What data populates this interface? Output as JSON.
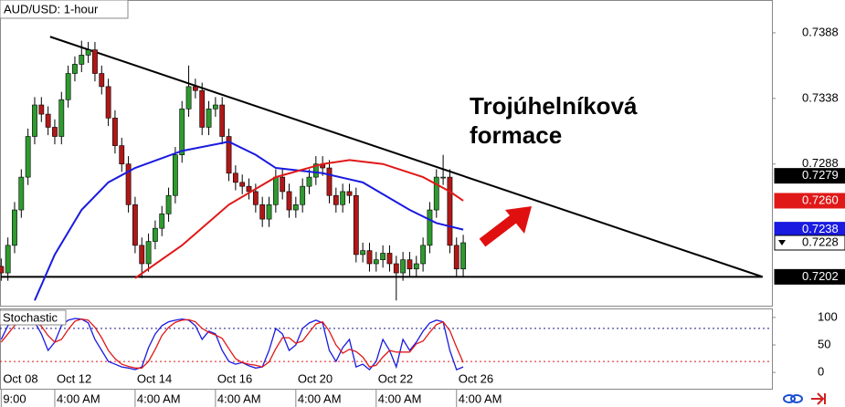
{
  "chart_data": [
    {
      "type": "candlestick",
      "title": "AUD/USD: 1-hour",
      "annotation": [
        "Trojúhelníková",
        "formace"
      ],
      "open": [
        0.721,
        0.7205,
        0.7226,
        0.7253,
        0.7278,
        0.7309,
        0.7333,
        0.7326,
        0.7316,
        0.7309,
        0.7337,
        0.7357,
        0.7364,
        0.7371,
        0.7375,
        0.7357,
        0.7347,
        0.7323,
        0.7302,
        0.7288,
        0.7257,
        0.7226,
        0.7212,
        0.7229,
        0.7239,
        0.725,
        0.7264,
        0.7295,
        0.733,
        0.7347,
        0.7344,
        0.7316,
        0.733,
        0.7333,
        0.7309,
        0.7281,
        0.7274,
        0.7271,
        0.7267,
        0.7257,
        0.7246,
        0.7257,
        0.7278,
        0.7267,
        0.7253,
        0.7257,
        0.7271,
        0.7278,
        0.7288,
        0.7285,
        0.7264,
        0.7257,
        0.7267,
        0.7264,
        0.7219,
        0.7222,
        0.7212,
        0.7215,
        0.722,
        0.7212,
        0.7205,
        0.7215,
        0.7208,
        0.7212,
        0.7226,
        0.7253,
        0.7278,
        0.7278,
        0.7226,
        0.7208
      ],
      "high": [
        0.7216,
        0.7232,
        0.7259,
        0.7284,
        0.7315,
        0.7339,
        0.7339,
        0.7332,
        0.7322,
        0.7343,
        0.7363,
        0.737,
        0.7382,
        0.7381,
        0.7381,
        0.7363,
        0.7353,
        0.7329,
        0.7308,
        0.7294,
        0.7263,
        0.7232,
        0.7235,
        0.7245,
        0.7256,
        0.727,
        0.7301,
        0.7336,
        0.7363,
        0.7353,
        0.735,
        0.7336,
        0.7339,
        0.7339,
        0.7315,
        0.7287,
        0.728,
        0.7277,
        0.7273,
        0.7263,
        0.7263,
        0.7284,
        0.7284,
        0.7273,
        0.7263,
        0.7277,
        0.7284,
        0.7294,
        0.7294,
        0.7291,
        0.727,
        0.7273,
        0.7273,
        0.727,
        0.7228,
        0.7228,
        0.7221,
        0.7226,
        0.7226,
        0.7218,
        0.7221,
        0.7221,
        0.7218,
        0.7232,
        0.7259,
        0.7284,
        0.7295,
        0.7284,
        0.7232,
        0.7234
      ],
      "low": [
        0.7199,
        0.7199,
        0.722,
        0.7247,
        0.7272,
        0.7303,
        0.732,
        0.731,
        0.7303,
        0.7303,
        0.7331,
        0.7351,
        0.7358,
        0.7365,
        0.7351,
        0.7341,
        0.7317,
        0.7296,
        0.7282,
        0.7251,
        0.722,
        0.7201,
        0.7206,
        0.7223,
        0.7233,
        0.7244,
        0.7258,
        0.7289,
        0.7324,
        0.7338,
        0.731,
        0.731,
        0.7324,
        0.7303,
        0.7275,
        0.7268,
        0.7265,
        0.7261,
        0.7251,
        0.724,
        0.724,
        0.7251,
        0.7261,
        0.7247,
        0.7247,
        0.7251,
        0.7265,
        0.7272,
        0.7279,
        0.7258,
        0.7251,
        0.7251,
        0.7258,
        0.7213,
        0.7213,
        0.7206,
        0.7206,
        0.7209,
        0.7206,
        0.7184,
        0.7199,
        0.7202,
        0.7202,
        0.7206,
        0.722,
        0.7247,
        0.7272,
        0.722,
        0.7202,
        0.7202
      ],
      "close": [
        0.7205,
        0.7226,
        0.7253,
        0.7278,
        0.7309,
        0.7333,
        0.7326,
        0.7316,
        0.7309,
        0.7337,
        0.7357,
        0.7364,
        0.7371,
        0.7375,
        0.7357,
        0.7347,
        0.7323,
        0.7302,
        0.7288,
        0.7257,
        0.7226,
        0.7212,
        0.7229,
        0.7239,
        0.725,
        0.7264,
        0.7295,
        0.733,
        0.7347,
        0.7344,
        0.7316,
        0.733,
        0.7333,
        0.7309,
        0.7281,
        0.7274,
        0.7271,
        0.7267,
        0.7257,
        0.7246,
        0.7257,
        0.7278,
        0.7267,
        0.7253,
        0.7257,
        0.7271,
        0.7278,
        0.7288,
        0.7285,
        0.7264,
        0.7257,
        0.7267,
        0.7264,
        0.7219,
        0.7222,
        0.7212,
        0.7215,
        0.722,
        0.7212,
        0.7205,
        0.7215,
        0.7208,
        0.7212,
        0.7226,
        0.7253,
        0.7278,
        0.7278,
        0.7226,
        0.7208,
        0.7228
      ],
      "up_color": "#2f9a2f",
      "down_color": "#b01818",
      "series": [
        {
          "color": "#1a1ae0",
          "x": [
            5,
            8,
            12,
            16,
            20,
            27,
            34,
            38,
            41,
            48,
            54,
            61,
            65,
            69
          ],
          "values": [
            0.7184,
            0.7219,
            0.7253,
            0.7274,
            0.7285,
            0.7298,
            0.7305,
            0.7295,
            0.7285,
            0.7281,
            0.7274,
            0.7253,
            0.7243,
            0.7238
          ]
        },
        {
          "color": "#e01818",
          "x": [
            20,
            27,
            34,
            41,
            48,
            52,
            57,
            63,
            67,
            69
          ],
          "values": [
            0.7201,
            0.7226,
            0.7257,
            0.7278,
            0.7288,
            0.7291,
            0.7288,
            0.7278,
            0.7267,
            0.726
          ]
        }
      ],
      "trendlines": [
        {
          "x": [
            7.3,
            113.7
          ],
          "values": [
            0.7385,
            0.7202
          ]
        },
        {
          "x": [
            0,
            113.7
          ],
          "values": [
            0.7202,
            0.7202
          ]
        }
      ],
      "xlim": [
        -0.18,
        115.1
      ],
      "ylim": [
        0.718,
        0.7413
      ],
      "yticks": [
        0.7388,
        0.7338,
        0.7288
      ],
      "price_labels": [
        {
          "value": 0.7279,
          "bg": "#000000",
          "fg": "#ffffff"
        },
        {
          "value": 0.726,
          "label": "0.7260",
          "bg": "#e01818",
          "fg": "#ffffff"
        },
        {
          "value": 0.7238,
          "bg": "#1a1ae0",
          "fg": "#ffffff"
        },
        {
          "value": 0.7228,
          "bg": "#ffffff",
          "fg": "#000000"
        },
        {
          "value": 0.7202,
          "bg": "#000000",
          "fg": "#ffffff"
        }
      ]
    },
    {
      "type": "line",
      "title": "Stochastic",
      "series": [
        {
          "color": "#1a1ae0",
          "values": [
            60,
            85,
            95,
            95,
            90,
            92,
            70,
            40,
            55,
            85,
            95,
            98,
            97,
            90,
            60,
            40,
            20,
            15,
            10,
            8,
            5,
            10,
            45,
            70,
            85,
            92,
            95,
            97,
            95,
            85,
            60,
            75,
            70,
            40,
            20,
            15,
            18,
            12,
            8,
            10,
            40,
            80,
            70,
            40,
            50,
            80,
            90,
            95,
            90,
            40,
            20,
            45,
            60,
            10,
            15,
            5,
            20,
            60,
            40,
            10,
            60,
            40,
            55,
            75,
            90,
            95,
            92,
            40,
            5,
            10
          ]
        },
        {
          "color": "#e01818",
          "values": [
            55,
            70,
            85,
            93,
            93,
            92,
            84,
            67,
            55,
            60,
            78,
            93,
            97,
            95,
            82,
            63,
            40,
            25,
            15,
            11,
            8,
            8,
            20,
            42,
            67,
            82,
            91,
            95,
            96,
            92,
            80,
            73,
            68,
            62,
            43,
            25,
            18,
            15,
            13,
            10,
            19,
            43,
            63,
            63,
            53,
            57,
            73,
            88,
            92,
            75,
            50,
            35,
            42,
            38,
            28,
            10,
            13,
            28,
            40,
            37,
            37,
            37,
            52,
            57,
            73,
            87,
            92,
            76,
            46,
            18
          ]
        }
      ],
      "levels": [
        {
          "value": 80,
          "color": "#1a1a90"
        },
        {
          "value": 20,
          "color": "#e01818"
        }
      ],
      "xlim": [
        -0.18,
        115.1
      ],
      "ylim": [
        -28,
        113
      ],
      "yticks": [
        100,
        50,
        0
      ],
      "xticks": [
        {
          "value": 0,
          "label": "Oct 08",
          "time": "9:00"
        },
        {
          "value": 8,
          "label": "Oct 12",
          "time": "4:00 AM"
        },
        {
          "value": 20,
          "label": "Oct 14",
          "time": "4:00 AM"
        },
        {
          "value": 32,
          "label": "Oct 16",
          "time": "4:00 AM"
        },
        {
          "value": 44,
          "label": "Oct 20",
          "time": "4:00 AM"
        },
        {
          "value": 56,
          "label": "Oct 22",
          "time": "4:00 AM"
        },
        {
          "value": 68,
          "label": "Oct 26",
          "time": "4:00 AM"
        }
      ]
    }
  ]
}
